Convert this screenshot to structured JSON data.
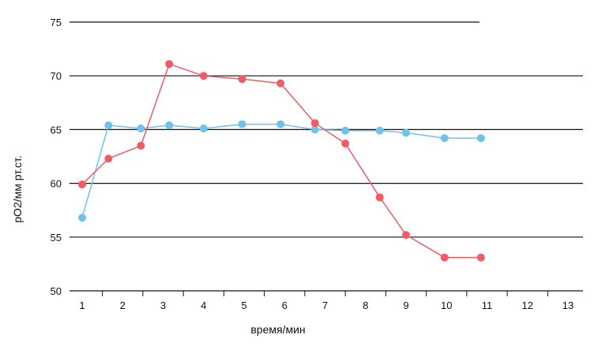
{
  "chart_data": {
    "type": "line",
    "xlabel": "время/мин",
    "ylabel": "pO2/мм рт.ст.",
    "xlim": [
      1,
      13
    ],
    "ylim": [
      50,
      75
    ],
    "x_ticks": [
      "1",
      "2",
      "3",
      "4",
      "5",
      "6",
      "7",
      "8",
      "9",
      "10",
      "11",
      "12",
      "13"
    ],
    "y_ticks": [
      "50",
      "55",
      "60",
      "65",
      "70",
      "75"
    ],
    "grid": "horizontal",
    "series": [
      {
        "color": "#6ec3ec",
        "x": [
          1.0,
          1.65,
          2.45,
          3.15,
          4.0,
          4.95,
          5.9,
          6.75,
          7.5,
          8.35,
          9.0,
          9.95,
          10.85
        ],
        "y": [
          56.8,
          65.4,
          65.1,
          65.4,
          65.1,
          65.5,
          65.5,
          65.0,
          64.9,
          64.9,
          64.7,
          64.2,
          64.2
        ]
      },
      {
        "color": "#ee5c66",
        "x": [
          1.0,
          1.65,
          2.45,
          3.15,
          4.0,
          4.95,
          5.9,
          6.75,
          7.5,
          8.35,
          9.0,
          9.95,
          10.85
        ],
        "y": [
          59.9,
          62.3,
          63.5,
          71.1,
          70.0,
          69.7,
          69.3,
          65.6,
          63.7,
          58.7,
          55.2,
          53.1,
          53.1
        ]
      }
    ]
  }
}
